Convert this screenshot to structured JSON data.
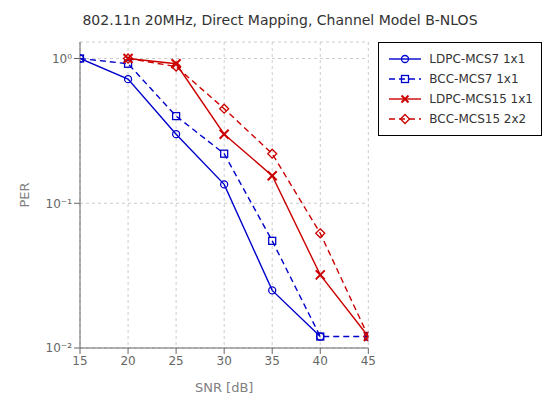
{
  "chart_data": {
    "type": "line",
    "title": "802.11n 20MHz, Direct Mapping, Channel Model B-NLOS",
    "xlabel": "SNR [dB]",
    "ylabel": "PER",
    "log": "y",
    "xlim": [
      15,
      45
    ],
    "ylim": [
      0.01,
      1.3
    ],
    "xticks": [
      15,
      20,
      25,
      30,
      35,
      40,
      45
    ],
    "yticks": [
      {
        "value": 0.01,
        "label": "10⁻²"
      },
      {
        "value": 0.1,
        "label": "10⁻¹"
      },
      {
        "value": 1,
        "label": "10⁰"
      }
    ],
    "grid": true,
    "legend": "upper right",
    "series": [
      {
        "name": "LDPC-MCS7 1x1",
        "color": "#0000CD",
        "line_style": "solid",
        "marker": "circle",
        "x": [
          15,
          20,
          25,
          30,
          35,
          40
        ],
        "values": [
          1.0,
          0.72,
          0.3,
          0.135,
          0.025,
          0.012
        ]
      },
      {
        "name": "BCC-MCS7 1x1",
        "color": "#0000CD",
        "line_style": "dashed",
        "marker": "square",
        "x": [
          15,
          20,
          25,
          30,
          35,
          40,
          45
        ],
        "values": [
          1.0,
          0.92,
          0.4,
          0.22,
          0.055,
          0.012,
          0.012
        ]
      },
      {
        "name": "LDPC-MCS15 1x1",
        "color": "#CC0000",
        "line_style": "solid",
        "marker": "x",
        "x": [
          20,
          25,
          30,
          35,
          40,
          45
        ],
        "values": [
          1.0,
          0.92,
          0.3,
          0.155,
          0.032,
          0.012
        ]
      },
      {
        "name": "BCC-MCS15 2x2",
        "color": "#CC0000",
        "line_style": "dashed",
        "marker": "diamond",
        "x": [
          20,
          25,
          30,
          35,
          40,
          45
        ],
        "values": [
          1.0,
          0.88,
          0.45,
          0.22,
          0.062,
          0.012
        ]
      }
    ]
  }
}
